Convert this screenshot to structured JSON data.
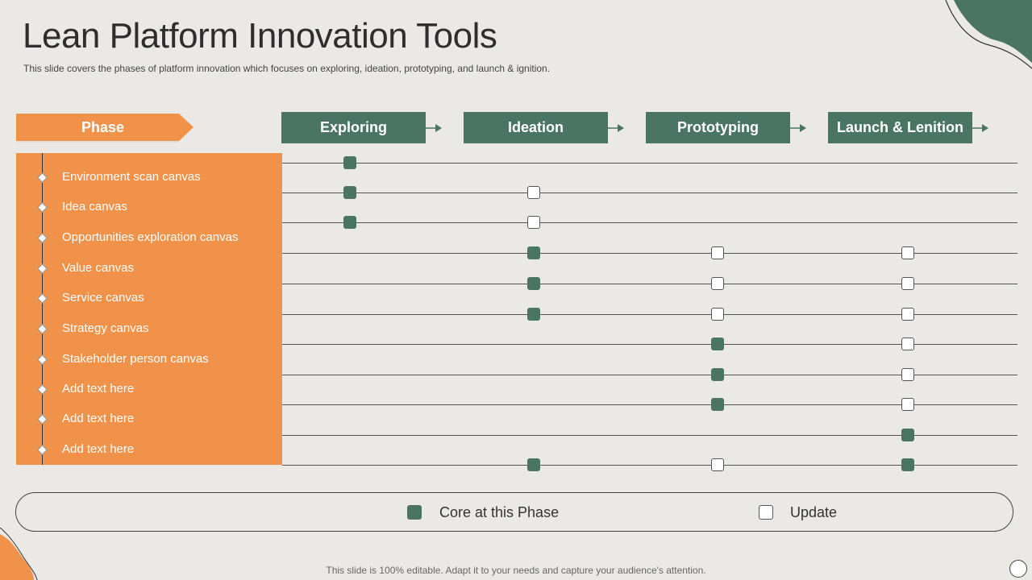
{
  "title": "Lean Platform Innovation Tools",
  "subtitle": "This slide covers the phases of platform innovation which focuses on exploring, ideation, prototyping, and launch & ignition.",
  "phase_header": "Phase",
  "phases": [
    "Exploring",
    "Ideation",
    "Prototyping",
    "Launch & Lenition"
  ],
  "items": [
    {
      "label": "Environment scan canvas",
      "marks": [
        "core",
        null,
        null,
        null
      ]
    },
    {
      "label": "Idea canvas",
      "marks": [
        "core",
        "update",
        null,
        null
      ]
    },
    {
      "label": "Opportunities exploration canvas",
      "marks": [
        "core",
        "update",
        null,
        null
      ]
    },
    {
      "label": "Value canvas",
      "marks": [
        null,
        "core",
        "update",
        "update"
      ]
    },
    {
      "label": "Service canvas",
      "marks": [
        null,
        "core",
        "update",
        "update"
      ]
    },
    {
      "label": "Strategy canvas",
      "marks": [
        null,
        "core",
        "update",
        "update"
      ]
    },
    {
      "label": "Stakeholder person canvas",
      "marks": [
        null,
        null,
        "core",
        "update"
      ]
    },
    {
      "label": "Add text here",
      "marks": [
        null,
        null,
        "core",
        "update"
      ]
    },
    {
      "label": "Add text here",
      "marks": [
        null,
        null,
        "core",
        "update"
      ]
    },
    {
      "label": "Add text here",
      "marks": [
        null,
        null,
        null,
        "core"
      ]
    }
  ],
  "extra_marks": [
    null,
    "core",
    "update",
    "core"
  ],
  "legend": {
    "core": "Core at this Phase",
    "update": "Update"
  },
  "footer": "This slide is 100% editable. Adapt it to your needs and capture your audience's attention.",
  "colors": {
    "green": "#4a7565",
    "orange": "#f0924a",
    "background": "#ebe9e5"
  }
}
